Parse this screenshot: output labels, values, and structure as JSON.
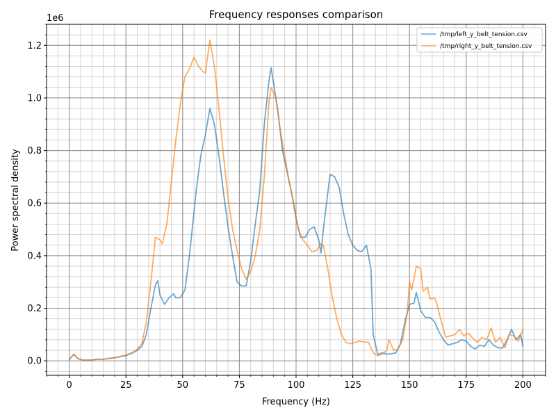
{
  "chart_data": {
    "type": "line",
    "title": "Frequency responses comparison",
    "xlabel": "Frequency (Hz)",
    "ylabel": "Power spectral density",
    "y_offset_label": "1e6",
    "y_multiplier": 1000000,
    "xlim": [
      -10,
      210
    ],
    "ylim": [
      -55000,
      1280000
    ],
    "x_major_ticks": [
      0,
      25,
      50,
      75,
      100,
      125,
      150,
      175,
      200
    ],
    "x_minor_step": 5,
    "y_major_ticks": [
      0,
      200000,
      400000,
      600000,
      800000,
      1000000,
      1200000
    ],
    "y_tick_labels": [
      "0.0",
      "0.2",
      "0.4",
      "0.6",
      "0.8",
      "1.0",
      "1.2"
    ],
    "y_minor_step": 40000,
    "grid": true,
    "legend_position": "top-right",
    "series": [
      {
        "name": "/tmp/left_y_belt_tension.csv",
        "color": "#1f77b4",
        "points": [
          [
            0,
            5000
          ],
          [
            2,
            25000
          ],
          [
            4,
            8000
          ],
          [
            6,
            3000
          ],
          [
            10,
            3000
          ],
          [
            12,
            6000
          ],
          [
            15,
            6000
          ],
          [
            20,
            12000
          ],
          [
            25,
            20000
          ],
          [
            28,
            30000
          ],
          [
            30,
            40000
          ],
          [
            32,
            55000
          ],
          [
            34,
            100000
          ],
          [
            36,
            200000
          ],
          [
            38,
            290000
          ],
          [
            39,
            305000
          ],
          [
            40,
            250000
          ],
          [
            42,
            215000
          ],
          [
            44,
            240000
          ],
          [
            46,
            255000
          ],
          [
            47,
            240000
          ],
          [
            49,
            240000
          ],
          [
            51,
            270000
          ],
          [
            53,
            400000
          ],
          [
            56,
            650000
          ],
          [
            58,
            780000
          ],
          [
            60,
            860000
          ],
          [
            62,
            960000
          ],
          [
            64,
            900000
          ],
          [
            66,
            780000
          ],
          [
            68,
            640000
          ],
          [
            70,
            510000
          ],
          [
            72,
            400000
          ],
          [
            74,
            300000
          ],
          [
            76,
            285000
          ],
          [
            78,
            285000
          ],
          [
            80,
            380000
          ],
          [
            82,
            520000
          ],
          [
            84,
            650000
          ],
          [
            86,
            900000
          ],
          [
            88,
            1060000
          ],
          [
            89,
            1115000
          ],
          [
            90,
            1060000
          ],
          [
            92,
            950000
          ],
          [
            94,
            800000
          ],
          [
            96,
            720000
          ],
          [
            98,
            640000
          ],
          [
            100,
            540000
          ],
          [
            102,
            470000
          ],
          [
            104,
            470000
          ],
          [
            106,
            500000
          ],
          [
            108,
            510000
          ],
          [
            110,
            460000
          ],
          [
            111,
            410000
          ],
          [
            112,
            500000
          ],
          [
            114,
            640000
          ],
          [
            115,
            710000
          ],
          [
            117,
            700000
          ],
          [
            119,
            660000
          ],
          [
            121,
            560000
          ],
          [
            123,
            480000
          ],
          [
            125,
            440000
          ],
          [
            127,
            420000
          ],
          [
            129,
            415000
          ],
          [
            131,
            440000
          ],
          [
            133,
            350000
          ],
          [
            134,
            100000
          ],
          [
            136,
            25000
          ],
          [
            138,
            30000
          ],
          [
            140,
            25000
          ],
          [
            142,
            27000
          ],
          [
            144,
            30000
          ],
          [
            146,
            65000
          ],
          [
            148,
            150000
          ],
          [
            150,
            215000
          ],
          [
            152,
            220000
          ],
          [
            153,
            260000
          ],
          [
            155,
            190000
          ],
          [
            157,
            165000
          ],
          [
            159,
            165000
          ],
          [
            161,
            150000
          ],
          [
            163,
            110000
          ],
          [
            165,
            80000
          ],
          [
            167,
            60000
          ],
          [
            169,
            65000
          ],
          [
            171,
            70000
          ],
          [
            173,
            80000
          ],
          [
            175,
            75000
          ],
          [
            177,
            55000
          ],
          [
            179,
            45000
          ],
          [
            181,
            60000
          ],
          [
            183,
            55000
          ],
          [
            185,
            80000
          ],
          [
            187,
            60000
          ],
          [
            189,
            50000
          ],
          [
            191,
            48000
          ],
          [
            193,
            80000
          ],
          [
            195,
            120000
          ],
          [
            197,
            80000
          ],
          [
            199,
            100000
          ],
          [
            200,
            55000
          ]
        ]
      },
      {
        "name": "/tmp/right_y_belt_tension.csv",
        "color": "#ff7f0e",
        "points": [
          [
            0,
            5000
          ],
          [
            2,
            25000
          ],
          [
            4,
            8000
          ],
          [
            6,
            3000
          ],
          [
            10,
            3000
          ],
          [
            12,
            6000
          ],
          [
            15,
            6000
          ],
          [
            20,
            12000
          ],
          [
            25,
            22000
          ],
          [
            28,
            32000
          ],
          [
            30,
            45000
          ],
          [
            32,
            65000
          ],
          [
            34,
            150000
          ],
          [
            36,
            300000
          ],
          [
            38,
            470000
          ],
          [
            40,
            460000
          ],
          [
            41,
            445000
          ],
          [
            43,
            520000
          ],
          [
            45,
            680000
          ],
          [
            47,
            840000
          ],
          [
            49,
            980000
          ],
          [
            51,
            1080000
          ],
          [
            53,
            1110000
          ],
          [
            55,
            1155000
          ],
          [
            57,
            1120000
          ],
          [
            59,
            1100000
          ],
          [
            60,
            1095000
          ],
          [
            62,
            1220000
          ],
          [
            64,
            1120000
          ],
          [
            66,
            960000
          ],
          [
            68,
            780000
          ],
          [
            70,
            620000
          ],
          [
            72,
            500000
          ],
          [
            74,
            420000
          ],
          [
            76,
            350000
          ],
          [
            78,
            310000
          ],
          [
            80,
            340000
          ],
          [
            82,
            400000
          ],
          [
            84,
            500000
          ],
          [
            86,
            700000
          ],
          [
            88,
            980000
          ],
          [
            89,
            1040000
          ],
          [
            91,
            1000000
          ],
          [
            93,
            880000
          ],
          [
            95,
            780000
          ],
          [
            97,
            680000
          ],
          [
            99,
            600000
          ],
          [
            101,
            500000
          ],
          [
            103,
            460000
          ],
          [
            105,
            440000
          ],
          [
            107,
            415000
          ],
          [
            109,
            420000
          ],
          [
            111,
            445000
          ],
          [
            112,
            440000
          ],
          [
            114,
            350000
          ],
          [
            116,
            240000
          ],
          [
            118,
            160000
          ],
          [
            120,
            100000
          ],
          [
            122,
            70000
          ],
          [
            124,
            65000
          ],
          [
            126,
            70000
          ],
          [
            128,
            75000
          ],
          [
            130,
            72000
          ],
          [
            132,
            70000
          ],
          [
            134,
            30000
          ],
          [
            136,
            20000
          ],
          [
            138,
            25000
          ],
          [
            140,
            40000
          ],
          [
            141,
            80000
          ],
          [
            143,
            40000
          ],
          [
            145,
            45000
          ],
          [
            147,
            80000
          ],
          [
            149,
            180000
          ],
          [
            150,
            300000
          ],
          [
            151,
            270000
          ],
          [
            153,
            360000
          ],
          [
            155,
            350000
          ],
          [
            156,
            265000
          ],
          [
            158,
            280000
          ],
          [
            159,
            235000
          ],
          [
            161,
            240000
          ],
          [
            162,
            220000
          ],
          [
            164,
            150000
          ],
          [
            166,
            90000
          ],
          [
            168,
            95000
          ],
          [
            170,
            100000
          ],
          [
            172,
            120000
          ],
          [
            174,
            95000
          ],
          [
            176,
            105000
          ],
          [
            178,
            85000
          ],
          [
            180,
            70000
          ],
          [
            182,
            90000
          ],
          [
            184,
            80000
          ],
          [
            186,
            125000
          ],
          [
            188,
            70000
          ],
          [
            190,
            90000
          ],
          [
            192,
            50000
          ],
          [
            194,
            100000
          ],
          [
            196,
            95000
          ],
          [
            198,
            75000
          ],
          [
            200,
            120000
          ]
        ]
      }
    ]
  }
}
